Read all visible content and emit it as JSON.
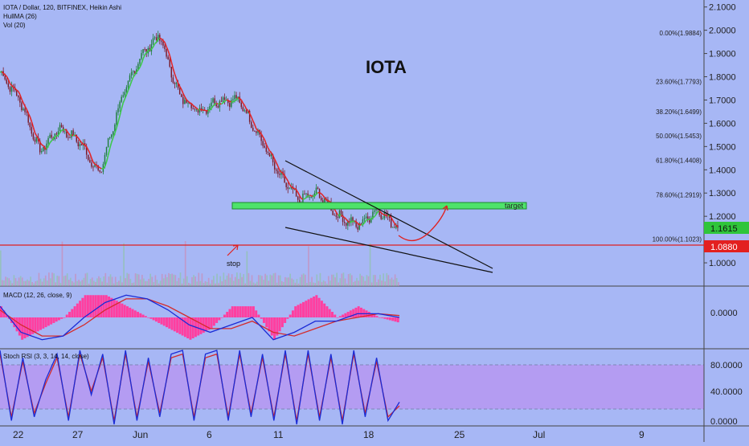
{
  "header": {
    "symbol_line": "IOTA / Dollar, 120, BITFINEX, Heikin Ashi",
    "indicator_1": "HullMA (26)",
    "indicator_2": "Vol (20)"
  },
  "annotations": {
    "title": "IOTA",
    "target_label": "target",
    "stop_label": "stop"
  },
  "colors": {
    "background": "#a7b7f5",
    "hull_down": "#e0262a",
    "hull_up": "#3cc84a",
    "target_box": "#4ee36a",
    "stop_line": "#e02020",
    "macd_line": "#1a2bd6",
    "signal_line": "#d42b2b",
    "histogram": "#ff3fa0",
    "rsi_band": "#b49cf2",
    "price_badge_green": "#2fc53a",
    "price_badge_red": "#e32020"
  },
  "price_badges": [
    {
      "value": "1.1615",
      "color": "#2fc53a"
    },
    {
      "value": "1.0880",
      "color": "#e32020"
    }
  ],
  "fib_levels": [
    {
      "label": "0.00%(1.9884)",
      "value": 1.9884
    },
    {
      "label": "23.60%(1.7793)",
      "value": 1.7793
    },
    {
      "label": "38.20%(1.6499)",
      "value": 1.6499
    },
    {
      "label": "50.00%(1.5453)",
      "value": 1.5453
    },
    {
      "label": "61.80%(1.4408)",
      "value": 1.4408
    },
    {
      "label": "78.60%(1.2919)",
      "value": 1.2919
    },
    {
      "label": "100.00%(1.1023)",
      "value": 1.1023
    }
  ],
  "chart_data": [
    {
      "panel": "price",
      "type": "line",
      "title": "IOTA",
      "xlabel": "",
      "ylabel": "",
      "x_tick_labels": [
        "22",
        "27",
        "Jun",
        "6",
        "11",
        "18",
        "25",
        "Jul",
        "9"
      ],
      "y_ticks": [
        "2.1000",
        "2.0000",
        "1.9000",
        "1.8000",
        "1.7000",
        "1.6000",
        "1.5000",
        "1.4000",
        "1.3000",
        "1.2000",
        "1.0000"
      ],
      "ylim": [
        0.9,
        2.13
      ],
      "grid": false,
      "series": [
        {
          "x": [
            "May 21",
            "May 22",
            "May 24",
            "May 26",
            "May 27",
            "May 29",
            "May 31",
            "Jun 2",
            "Jun 3",
            "Jun 5",
            "Jun 6",
            "Jun 8",
            "Jun 9",
            "Jun 10",
            "Jun 11",
            "Jun 12",
            "Jun 14",
            "Jun 16",
            "Jun 18",
            "Jun 19",
            "Jun 20"
          ],
          "values": [
            1.82,
            1.7,
            1.48,
            1.58,
            1.52,
            1.38,
            1.68,
            1.88,
            1.98,
            1.72,
            1.65,
            1.7,
            1.7,
            1.55,
            1.38,
            1.27,
            1.3,
            1.2,
            1.16,
            1.23,
            1.15
          ]
        }
      ],
      "target_zone": {
        "label": "target",
        "low": 1.255,
        "high": 1.285
      },
      "stop_level": 1.088,
      "last_price": 1.1615,
      "wedge": {
        "upper": [
          {
            "x": "Jun 12",
            "y": 1.46
          },
          {
            "x": "Jun 27",
            "y": 0.98
          }
        ],
        "lower": [
          {
            "x": "Jun 12",
            "y": 1.17
          },
          {
            "x": "Jun 27",
            "y": 0.98
          }
        ]
      }
    },
    {
      "panel": "macd",
      "type": "line",
      "title": "MACD (12, 26, close, 9)",
      "y_ticks": [
        "0.0000"
      ],
      "ylim": [
        -0.08,
        0.08
      ],
      "series": [
        {
          "name": "MACD",
          "values": [
            0.03,
            -0.04,
            -0.06,
            -0.05,
            0.0,
            0.04,
            0.06,
            0.05,
            0.02,
            -0.02,
            -0.04,
            -0.02,
            0.0,
            -0.06,
            -0.04,
            -0.01,
            -0.01,
            0.01,
            0.01,
            0.0
          ]
        },
        {
          "name": "Signal",
          "values": [
            0.02,
            -0.02,
            -0.05,
            -0.05,
            -0.02,
            0.02,
            0.05,
            0.05,
            0.03,
            0.0,
            -0.03,
            -0.03,
            -0.01,
            -0.04,
            -0.05,
            -0.03,
            -0.01,
            0.0,
            0.01,
            0.005
          ]
        }
      ]
    },
    {
      "panel": "stoch_rsi",
      "type": "line",
      "title": "Stoch RSI (3, 3, 14, 14, close)",
      "y_ticks": [
        "80.0000",
        "40.0000",
        "0.0000"
      ],
      "ylim": [
        0,
        100
      ],
      "band": [
        20,
        80
      ],
      "series": [
        {
          "name": "K",
          "values": [
            100,
            5,
            90,
            10,
            60,
            95,
            5,
            100,
            40,
            95,
            0,
            100,
            5,
            90,
            10,
            95,
            100,
            5,
            95,
            100,
            5,
            100,
            10,
            95,
            5,
            100,
            0,
            100,
            5,
            95,
            0,
            100,
            10,
            90,
            5,
            30
          ]
        },
        {
          "name": "D",
          "values": [
            95,
            10,
            85,
            15,
            55,
            90,
            10,
            95,
            45,
            90,
            5,
            95,
            10,
            85,
            15,
            90,
            95,
            10,
            90,
            95,
            10,
            95,
            15,
            90,
            10,
            95,
            5,
            95,
            10,
            90,
            5,
            95,
            15,
            85,
            10,
            25
          ]
        }
      ]
    }
  ]
}
